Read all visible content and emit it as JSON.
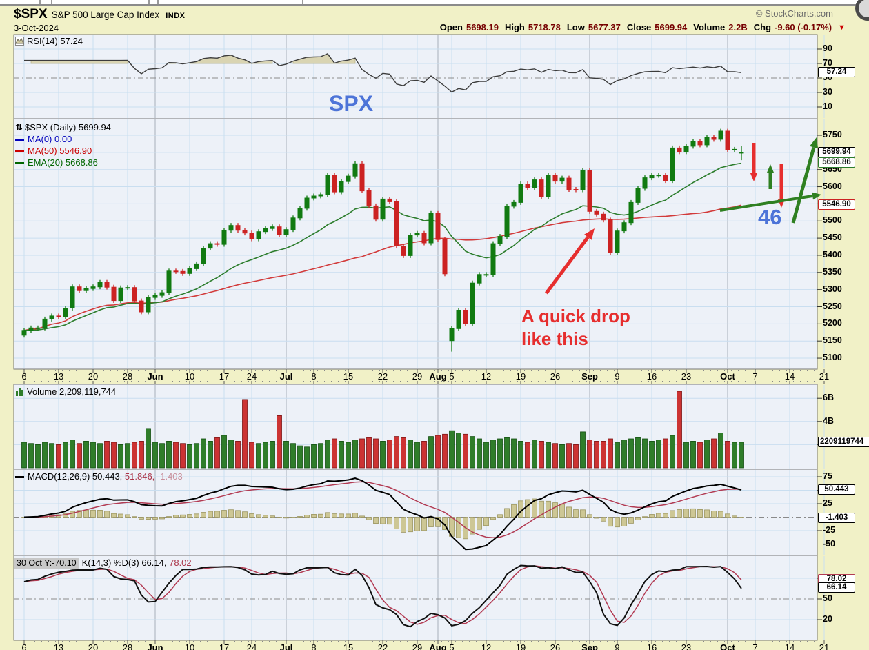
{
  "header": {
    "symbol": "$SPX",
    "name": "S&P 500 Large Cap Index",
    "exchange": "INDX",
    "date": "3-Oct-2024",
    "copyright": "© StockCharts.com",
    "quote": [
      {
        "label": "Open",
        "value": "5698.19"
      },
      {
        "label": "High",
        "value": "5718.78"
      },
      {
        "label": "Low",
        "value": "5677.37"
      },
      {
        "label": "Close",
        "value": "5699.94"
      },
      {
        "label": "Volume",
        "value": "2.2B"
      },
      {
        "label": "Chg",
        "value": "-9.60 (-0.17%)"
      }
    ],
    "chg_arrow": "▼"
  },
  "panels": {
    "rsi": {
      "label": "RSI(14) 57.24"
    },
    "price": {
      "title": "$SPX (Daily) 5699.94",
      "legend": [
        {
          "text": "MA(0) 0.00",
          "color": "#0000bb"
        },
        {
          "text": "MA(50) 5546.90",
          "color": "#cc0000"
        },
        {
          "text": "EMA(20) 5668.86",
          "color": "#006600"
        }
      ]
    },
    "volume": {
      "label": "Volume 2,209,119,744"
    },
    "macd": {
      "parts": [
        {
          "text": "MACD(12,26,9) 50.443,",
          "color": "#000000"
        },
        {
          "text": " 51.846,",
          "color": "#aa3347"
        },
        {
          "text": " -1.403",
          "color": "#c9909c"
        }
      ]
    },
    "stoch": {
      "tooltip": "30 Oct Y:-70.10",
      "parts": [
        {
          "text": "K(14,3) %D(3) 66.14,",
          "color": "#000000"
        },
        {
          "text": " 78.02",
          "color": "#aa3347"
        }
      ]
    }
  },
  "axes": {
    "yaxis": {
      "rsi": [
        90,
        70,
        50,
        30,
        10
      ],
      "price": [
        5750,
        5700,
        5650,
        5600,
        5550,
        5500,
        5450,
        5400,
        5350,
        5300,
        5250,
        5200,
        5150,
        5100
      ],
      "vol": [
        {
          "t": "6B",
          "v": 6
        },
        {
          "t": "4B",
          "v": 4
        },
        {
          "t": "2B",
          "v": 2
        }
      ],
      "macd": [
        75,
        50,
        25,
        -25,
        -50
      ],
      "stoch": [
        80,
        50,
        20
      ]
    },
    "value_labels": {
      "rsi": [
        {
          "t": "57.24",
          "v": 57.24,
          "b": "#000000"
        }
      ],
      "price": [
        {
          "t": "5699.94",
          "v": 5699.94,
          "b": "#000000",
          "bold": true
        },
        {
          "t": "5668.86",
          "v": 5668.86,
          "b": "#2c7d2c"
        },
        {
          "t": "5546.90",
          "v": 5546.9,
          "b": "#cc2222"
        }
      ],
      "vol": [
        {
          "t": "2209119744",
          "v": 2.209,
          "b": "#000000",
          "wide": true
        }
      ],
      "macd": [
        {
          "t": "50.443",
          "v": 50.443,
          "b": "#000000"
        },
        {
          "t": "-1.403",
          "v": -1.403,
          "b": "#000000"
        }
      ],
      "stoch": [
        {
          "t": "78.02",
          "v": 78.02,
          "b": "#b23a52"
        },
        {
          "t": "66.14",
          "v": 66.14,
          "b": "#000000"
        }
      ]
    },
    "xticks": [
      {
        "t": "6",
        "i": 0
      },
      {
        "t": "13",
        "i": 5
      },
      {
        "t": "20",
        "i": 10
      },
      {
        "t": "28",
        "i": 15
      },
      {
        "t": "Jun",
        "i": 19,
        "m": 1
      },
      {
        "t": "10",
        "i": 24
      },
      {
        "t": "17",
        "i": 29
      },
      {
        "t": "24",
        "i": 33
      },
      {
        "t": "Jul",
        "i": 38,
        "m": 1
      },
      {
        "t": "8",
        "i": 42
      },
      {
        "t": "15",
        "i": 47
      },
      {
        "t": "22",
        "i": 52
      },
      {
        "t": "29",
        "i": 57
      },
      {
        "t": "Aug",
        "i": 60,
        "m": 1
      },
      {
        "t": "5",
        "i": 62
      },
      {
        "t": "12",
        "i": 67
      },
      {
        "t": "19",
        "i": 72
      },
      {
        "t": "26",
        "i": 77
      },
      {
        "t": "Sep",
        "i": 82,
        "m": 1
      },
      {
        "t": "9",
        "i": 86
      },
      {
        "t": "16",
        "i": 91
      },
      {
        "t": "23",
        "i": 96
      },
      {
        "t": "Oct",
        "i": 102,
        "m": 1
      },
      {
        "t": "7",
        "i": 106
      },
      {
        "t": "14",
        "i": 111
      },
      {
        "t": "21",
        "i": 116
      }
    ]
  },
  "annotations": {
    "symbol": "SPX",
    "number": "46",
    "drop_line1": "A quick drop",
    "drop_line2": "like this"
  },
  "chart_data": {
    "type": "candlestick",
    "timeframe": "daily",
    "title": "$SPX (Daily) 5699.94",
    "price_ylim": [
      5100,
      5750
    ],
    "rsi_ylim": [
      0,
      100
    ],
    "volume_ylim_billions": [
      0,
      7
    ],
    "macd_ylim": [
      -60,
      80
    ],
    "stoch_ylim": [
      0,
      100
    ],
    "grid": true,
    "closes": [
      5181,
      5188,
      5188,
      5214,
      5223,
      5221,
      5246,
      5308,
      5297,
      5303,
      5308,
      5321,
      5307,
      5268,
      5305,
      5306,
      5267,
      5235,
      5277,
      5283,
      5291,
      5354,
      5353,
      5347,
      5361,
      5375,
      5421,
      5434,
      5432,
      5473,
      5487,
      5473,
      5465,
      5448,
      5469,
      5478,
      5483,
      5460,
      5475,
      5509,
      5537,
      5567,
      5573,
      5577,
      5634,
      5585,
      5615,
      5631,
      5667,
      5588,
      5544,
      5505,
      5564,
      5556,
      5427,
      5399,
      5459,
      5464,
      5436,
      5522,
      5446,
      5346,
      5186,
      5240,
      5200,
      5319,
      5344,
      5344,
      5434,
      5455,
      5543,
      5554,
      5608,
      5597,
      5620,
      5570,
      5634,
      5616,
      5625,
      5592,
      5591,
      5648,
      5528,
      5520,
      5503,
      5408,
      5471,
      5495,
      5554,
      5595,
      5626,
      5633,
      5634,
      5618,
      5713,
      5702,
      5718,
      5732,
      5722,
      5745,
      5738,
      5762,
      5708,
      5709,
      5699.94
    ],
    "volumes_billions": [
      2.2,
      2.1,
      2.0,
      2.2,
      2.1,
      2.0,
      2.2,
      2.4,
      2.1,
      2.3,
      2.2,
      2.1,
      2.3,
      2.2,
      2.0,
      2.1,
      2.2,
      2.3,
      3.4,
      2.2,
      2.1,
      2.3,
      2.2,
      2.1,
      2.0,
      2.1,
      2.5,
      2.3,
      2.6,
      2.8,
      2.4,
      2.3,
      5.9,
      2.2,
      2.1,
      2.2,
      2.3,
      4.5,
      2.3,
      2.1,
      1.9,
      1.8,
      2.0,
      2.1,
      2.4,
      2.5,
      2.3,
      2.2,
      2.4,
      2.5,
      2.6,
      2.5,
      2.3,
      2.4,
      2.7,
      2.6,
      2.4,
      2.2,
      2.3,
      2.7,
      2.8,
      2.9,
      3.2,
      3.0,
      2.9,
      2.7,
      2.5,
      2.2,
      2.4,
      2.5,
      2.6,
      2.5,
      2.3,
      2.2,
      2.4,
      2.3,
      2.2,
      2.1,
      2.0,
      2.1,
      2.0,
      3.1,
      2.4,
      2.3,
      2.3,
      2.5,
      2.2,
      2.4,
      2.5,
      2.6,
      2.5,
      2.3,
      2.4,
      2.5,
      2.8,
      6.6,
      2.2,
      2.3,
      2.2,
      2.4,
      2.5,
      3.0,
      2.3,
      2.2,
      2.21
    ],
    "open_rule": "previous_close",
    "wick_pts": 7,
    "overrides": {
      "0": {
        "o": 5167
      },
      "62": {
        "o": 5151,
        "l": 5119
      },
      "104": {
        "o": 5698.19,
        "h": 5718.78,
        "l": 5677.37
      }
    },
    "overlays": {
      "ma0_last": 0.0,
      "ma50_last": 5546.9,
      "ema20_last": 5668.86
    },
    "indicators": {
      "rsi": {
        "period": 14,
        "last": 57.24
      },
      "macd": {
        "params": [
          12,
          26,
          9
        ],
        "last": [
          50.443,
          51.846,
          -1.403
        ]
      },
      "stoch": {
        "params": [
          14,
          3,
          3
        ],
        "last_k": 66.14,
        "last_d": 78.02
      },
      "volume_last": 2209119744
    },
    "colors": {
      "up": "#117a11",
      "down": "#cc2222",
      "ma50": "#d23a3a",
      "ema20": "#2c7d2c",
      "macd_line": "#000000",
      "signal_line": "#b23a52",
      "hist_fill": "#cdc795",
      "hist_edge": "#9b9560",
      "rsi_line": "#3c3c3c",
      "rsi_fill": "#d9d4b2",
      "panel_bg": "#edf1f8",
      "grid": "#c9def0",
      "month_grid": "#a8b0ba",
      "annotation_red": "#e62e2e",
      "annotation_green": "#2f8021",
      "annotation_blue": "#4d74d8",
      "value_red": "#760000"
    }
  }
}
